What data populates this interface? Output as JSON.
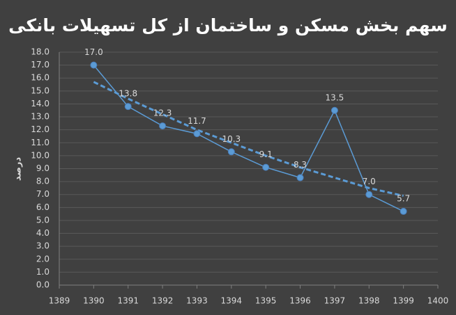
{
  "chart_data": {
    "type": "line",
    "title": "سهم بخش مسکن و ساختمان از کل تسهیلات بانکی",
    "y_label": "درصد",
    "x": [
      1390,
      1391,
      1392,
      1393,
      1394,
      1395,
      1396,
      1397,
      1398,
      1399
    ],
    "series": [
      {
        "color": "#5b9bd5",
        "values": [
          17.0,
          13.8,
          12.3,
          11.7,
          10.3,
          9.1,
          8.3,
          13.5,
          7.0,
          5.7
        ],
        "value_labels": [
          "17.0",
          "13.8",
          "12.3",
          "11.7",
          "10.3",
          "9.1",
          "8.3",
          "13.5",
          "7.0",
          "5.7"
        ]
      }
    ],
    "trendline": {
      "color": "#5b9bd5",
      "dashed": true,
      "values": [
        15.7,
        14.4,
        13.2,
        12.0,
        11.0,
        10.0,
        9.1,
        8.3,
        7.5,
        6.9
      ]
    },
    "xlim": [
      1389,
      1400
    ],
    "xticks": [
      1389,
      1390,
      1391,
      1392,
      1393,
      1394,
      1395,
      1396,
      1397,
      1398,
      1399,
      1400
    ],
    "ylim": [
      0,
      18
    ],
    "yticks": [
      {
        "value": 0,
        "label": "0.0"
      },
      {
        "value": 1,
        "label": "1.0"
      },
      {
        "value": 2,
        "label": "2.0"
      },
      {
        "value": 3,
        "label": "3.0"
      },
      {
        "value": 4,
        "label": "4.0"
      },
      {
        "value": 5,
        "label": "5.0"
      },
      {
        "value": 6,
        "label": "6.0"
      },
      {
        "value": 7,
        "label": "7.0"
      },
      {
        "value": 8,
        "label": "8.0"
      },
      {
        "value": 9,
        "label": "9.0"
      },
      {
        "value": 10,
        "label": "10.0"
      },
      {
        "value": 11,
        "label": "11.0"
      },
      {
        "value": 12,
        "label": "12.0"
      },
      {
        "value": 13,
        "label": "13.0"
      },
      {
        "value": 14,
        "label": "14.0"
      },
      {
        "value": 15,
        "label": "15.0"
      },
      {
        "value": 16,
        "label": "16.0"
      },
      {
        "value": 17,
        "label": "17.0"
      },
      {
        "value": 18,
        "label": "18.0"
      }
    ],
    "grid": true
  }
}
